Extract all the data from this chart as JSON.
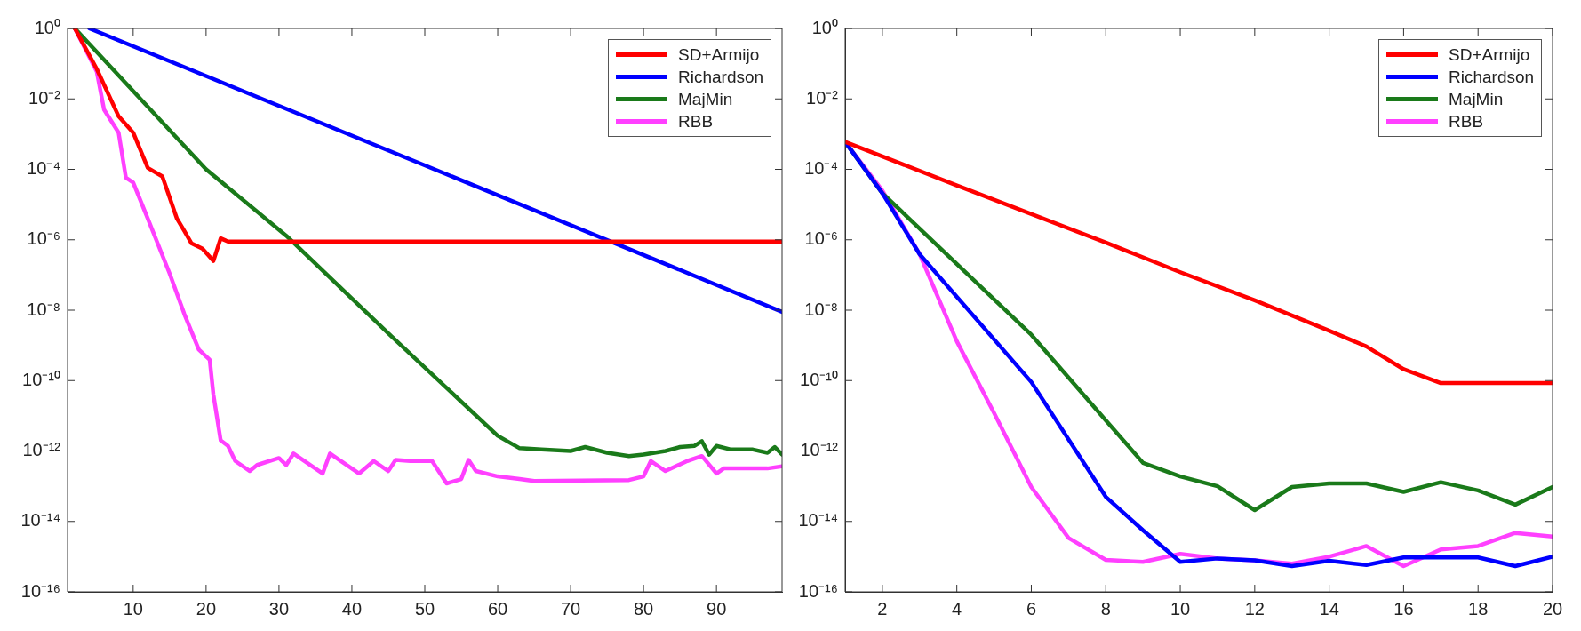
{
  "chart_data": [
    {
      "type": "line",
      "log": "y",
      "legend": "top right",
      "marker": "none",
      "line_style": "solid",
      "xlim": [
        1,
        99
      ],
      "xticks": [
        10,
        20,
        30,
        40,
        50,
        60,
        70,
        80,
        90
      ],
      "ylim": [
        1e-16,
        1
      ],
      "yticks": [
        {
          "value": 1,
          "label": "10⁰"
        },
        {
          "value": 0.01,
          "label": "10⁻²"
        },
        {
          "value": 0.0001,
          "label": "10⁻⁴"
        },
        {
          "value": 1e-06,
          "label": "10⁻⁶"
        },
        {
          "value": 1e-08,
          "label": "10⁻⁸"
        },
        {
          "value": 1e-10,
          "label": "10⁻¹⁰"
        },
        {
          "value": 1e-12,
          "label": "10⁻¹²"
        },
        {
          "value": 1e-14,
          "label": "10⁻¹⁴"
        },
        {
          "value": 1e-16,
          "label": "10⁻¹⁶"
        }
      ],
      "series": [
        {
          "name": "SD+Armijo",
          "color": "#ff0000",
          "x": [
            2,
            5,
            8,
            10,
            12,
            14,
            16,
            17,
            18,
            19.5,
            21,
            22,
            23,
            99
          ],
          "values": [
            1,
            0.071,
            0.0032,
            0.0011,
            0.00011,
            6.3e-05,
            4e-06,
            1.8e-06,
            7.9e-07,
            5.6e-07,
            2.5e-07,
            1.1e-06,
            8.9e-07,
            8.9e-07
          ]
        },
        {
          "name": "Richardson",
          "color": "#0000ff",
          "x": [
            4,
            50,
            99
          ],
          "values": [
            1,
            0.00013,
            9e-09
          ]
        },
        {
          "name": "MajMin",
          "color": "#1a7a1a",
          "x": [
            2,
            20,
            31,
            45,
            60,
            63,
            66,
            70,
            72,
            75,
            78,
            80,
            83,
            85,
            87,
            88,
            89,
            90,
            92,
            95,
            97,
            98,
            99
          ],
          "values": [
            1,
            0.0001,
            1.3e-06,
            2.2e-09,
            2.7e-12,
            1.2e-12,
            1.1e-12,
            1e-12,
            1.3e-12,
            8.9e-13,
            7.2e-13,
            7.9e-13,
            1e-12,
            1.3e-12,
            1.4e-12,
            1.9e-12,
            7.9e-13,
            1.4e-12,
            1.1e-12,
            1.1e-12,
            8.9e-13,
            1.3e-12,
            7.9e-13
          ]
        },
        {
          "name": "RBB",
          "color": "#ff40ff",
          "x": [
            2,
            5,
            6,
            8,
            9,
            10,
            12,
            15,
            17,
            19,
            20.5,
            21,
            22,
            23,
            24,
            26,
            27,
            30,
            31,
            32,
            34,
            36,
            37,
            39,
            41,
            43,
            45,
            46,
            48,
            51,
            53,
            55,
            56,
            57,
            60,
            63,
            65,
            78,
            80,
            81,
            83,
            86,
            88,
            90,
            91,
            95,
            97,
            99
          ],
          "values": [
            1,
            0.06,
            0.005,
            0.0011,
            5.8e-05,
            4.2e-05,
            4e-06,
            1.1e-07,
            7.9e-09,
            7.6e-10,
            3.9e-10,
            4e-11,
            2e-12,
            1.4e-12,
            5.2e-13,
            2.7e-13,
            4e-13,
            6.3e-13,
            4e-13,
            8.5e-13,
            4.4e-13,
            2.3e-13,
            8.5e-13,
            4.4e-13,
            2.3e-13,
            5.2e-13,
            2.7e-13,
            5.6e-13,
            5.2e-13,
            5.2e-13,
            1.2e-13,
            1.6e-13,
            5.6e-13,
            2.7e-13,
            1.9e-13,
            1.6e-13,
            1.4e-13,
            1.5e-13,
            1.9e-13,
            5.2e-13,
            2.7e-13,
            5.2e-13,
            7.2e-13,
            2.3e-13,
            3.2e-13,
            3.2e-13,
            3.2e-13,
            3.7e-13
          ]
        }
      ]
    },
    {
      "type": "line",
      "log": "y",
      "legend": "top right",
      "marker": "none",
      "line_style": "solid",
      "xlim": [
        1,
        20
      ],
      "xticks": [
        2,
        4,
        6,
        8,
        10,
        12,
        14,
        16,
        18,
        20
      ],
      "ylim": [
        1e-16,
        1
      ],
      "yticks": [
        {
          "value": 1,
          "label": "10⁰"
        },
        {
          "value": 0.01,
          "label": "10⁻²"
        },
        {
          "value": 0.0001,
          "label": "10⁻⁴"
        },
        {
          "value": 1e-06,
          "label": "10⁻⁶"
        },
        {
          "value": 1e-08,
          "label": "10⁻⁸"
        },
        {
          "value": 1e-10,
          "label": "10⁻¹⁰"
        },
        {
          "value": 1e-12,
          "label": "10⁻¹²"
        },
        {
          "value": 1e-14,
          "label": "10⁻¹⁴"
        },
        {
          "value": 1e-16,
          "label": "10⁻¹⁶"
        }
      ],
      "series": [
        {
          "name": "SD+Armijo",
          "color": "#ff0000",
          "x": [
            1,
            4,
            8,
            10,
            12,
            14,
            15,
            16,
            17,
            20
          ],
          "values": [
            0.0006,
            3.5e-05,
            8.3e-07,
            1.2e-07,
            1.9e-08,
            2.6e-09,
            9.3e-10,
            2.1e-10,
            8.5e-11,
            8.5e-11
          ]
        },
        {
          "name": "Richardson",
          "color": "#0000ff",
          "x": [
            1,
            2,
            3,
            6,
            8,
            9,
            10,
            11,
            12,
            13,
            14,
            15,
            16,
            17,
            18,
            19,
            20
          ],
          "values": [
            0.0006,
            2.1e-05,
            3.9e-07,
            9.1e-11,
            5e-14,
            5.6e-15,
            7.1e-16,
            8.9e-16,
            7.9e-16,
            5.4e-16,
            7.6e-16,
            5.8e-16,
            9.5e-16,
            9.5e-16,
            9.5e-16,
            5.4e-16,
            1e-15
          ]
        },
        {
          "name": "MajMin",
          "color": "#1a7a1a",
          "x": [
            1,
            2,
            6,
            8,
            9,
            10,
            11,
            12,
            13,
            14,
            15,
            16,
            17,
            18,
            19,
            20
          ],
          "values": [
            0.0006,
            2.1e-05,
            2e-09,
            7.4e-12,
            4.6e-13,
            1.9e-13,
            1e-13,
            2.1e-14,
            9.5e-14,
            1.2e-13,
            1.2e-13,
            6.9e-14,
            1.3e-13,
            7.6e-14,
            3e-14,
            9.5e-14
          ]
        },
        {
          "name": "RBB",
          "color": "#ff40ff",
          "x": [
            1,
            2,
            3,
            4,
            5,
            6,
            7,
            8,
            9,
            10,
            11,
            12,
            13,
            14,
            15,
            16,
            17,
            18,
            19,
            20
          ],
          "values": [
            0.0006,
            2.5e-05,
            3.9e-07,
            1.3e-09,
            1.2e-11,
            9.5e-14,
            3.4e-15,
            8.1e-16,
            7.1e-16,
            1.2e-15,
            8.9e-16,
            7.9e-16,
            6.3e-16,
            1e-15,
            2e-15,
            5.4e-16,
            1.6e-15,
            2e-15,
            4.7e-15,
            3.7e-15
          ]
        }
      ]
    }
  ]
}
